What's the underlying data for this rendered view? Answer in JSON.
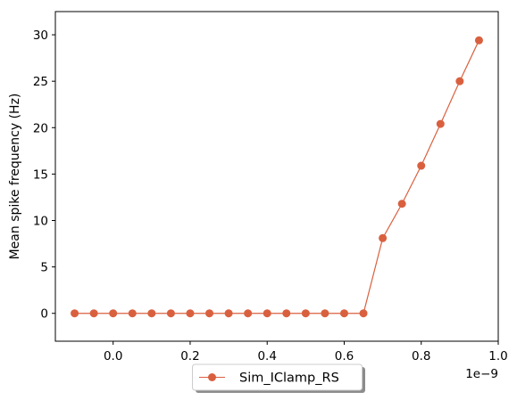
{
  "chart_data": {
    "type": "line",
    "title": "",
    "xlabel": "",
    "ylabel": "Mean spike frequency (Hz)",
    "x_offset_label": "1e−9",
    "xlim": [
      -0.15,
      1.0
    ],
    "ylim": [
      -3,
      32.5
    ],
    "xticks": [
      0.0,
      0.2,
      0.4,
      0.6,
      0.8,
      1.0
    ],
    "xtick_labels": [
      "0.0",
      "0.2",
      "0.4",
      "0.6",
      "0.8",
      "1.0"
    ],
    "yticks": [
      0,
      5,
      10,
      15,
      20,
      25,
      30
    ],
    "ytick_labels": [
      "0",
      "5",
      "10",
      "15",
      "20",
      "25",
      "30"
    ],
    "grid": false,
    "legend": "bottom-center",
    "series": [
      {
        "name": "Sim_IClamp_RS",
        "color": "#d9603f",
        "marker": "circle",
        "x": [
          -0.1,
          -0.05,
          0.0,
          0.05,
          0.1,
          0.15,
          0.2,
          0.25,
          0.3,
          0.35,
          0.4,
          0.45,
          0.5,
          0.55,
          0.6,
          0.65,
          0.7,
          0.75,
          0.8,
          0.85,
          0.9,
          0.95
        ],
        "y": [
          0,
          0,
          0,
          0,
          0,
          0,
          0,
          0,
          0,
          0,
          0,
          0,
          0,
          0,
          0,
          0,
          8.1,
          11.8,
          15.9,
          20.4,
          25.0,
          29.4
        ]
      }
    ]
  }
}
